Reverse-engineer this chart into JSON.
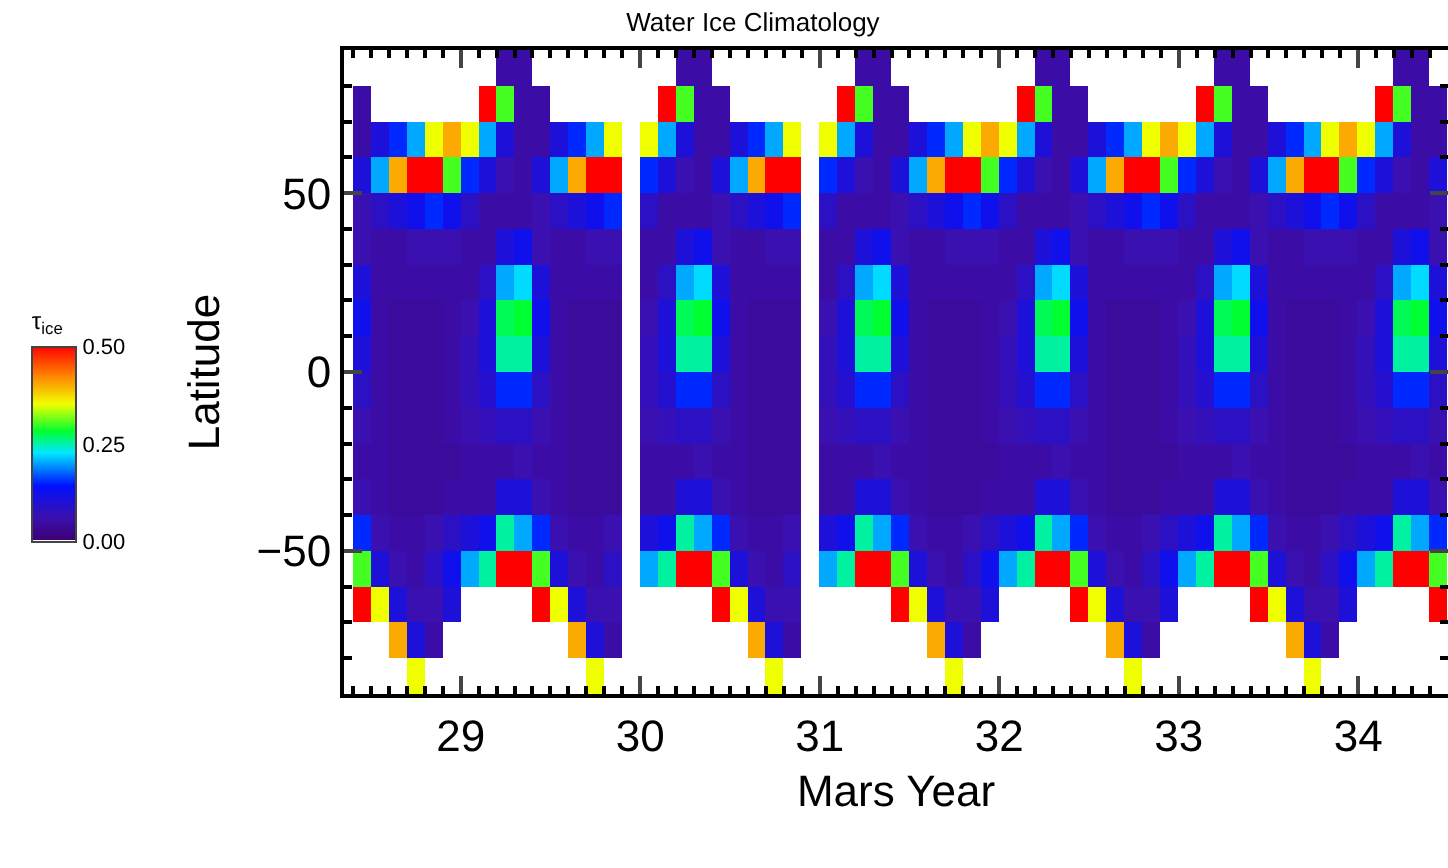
{
  "chart_data": {
    "type": "heatmap",
    "title": "Water Ice Climatology",
    "xlabel": "Mars Year",
    "ylabel": "Latitude",
    "clabel": "τ$_{ice}$",
    "x": [
      28.35,
      28.45,
      28.55,
      28.65,
      28.75,
      28.85,
      28.95,
      29.05,
      29.15,
      29.25,
      29.35,
      29.45,
      29.55,
      29.65,
      29.75,
      29.85,
      29.95,
      30.05,
      30.15,
      30.25,
      30.35,
      30.45,
      30.55,
      30.65,
      30.75,
      30.85,
      30.95,
      31.05,
      31.15,
      31.25,
      31.35,
      31.45,
      31.55,
      31.65,
      31.75,
      31.85,
      31.95,
      32.05,
      32.15,
      32.25,
      32.35,
      32.45,
      32.55,
      32.65,
      32.75,
      32.85,
      32.95,
      33.05,
      33.15,
      33.25,
      33.35,
      33.45,
      33.55,
      33.65,
      33.75,
      33.85,
      33.95,
      34.05,
      34.15,
      34.25,
      34.35,
      34.45
    ],
    "y": [
      85,
      75,
      65,
      55,
      45,
      35,
      25,
      15,
      5,
      -5,
      -15,
      -25,
      -35,
      -45,
      -55,
      -65,
      -75,
      -85
    ],
    "cells": [
      [
        null,
        null,
        null,
        null,
        null,
        null,
        null,
        null,
        null,
        0.05,
        0.05,
        null,
        null,
        null,
        null,
        null,
        null,
        null,
        null,
        0.05,
        0.05,
        null,
        null,
        null,
        null,
        null,
        null,
        null,
        null,
        0.05,
        0.05,
        null,
        null,
        null,
        null,
        null,
        null,
        null,
        null,
        0.05,
        0.05,
        null,
        null,
        null,
        null,
        null,
        null,
        null,
        null,
        0.05,
        0.05,
        null,
        null,
        null,
        null,
        null,
        null,
        null,
        null,
        0.05,
        0.05,
        null
      ],
      [
        null,
        0.05,
        null,
        null,
        null,
        null,
        null,
        null,
        0.5,
        0.3,
        0.05,
        0.05,
        null,
        null,
        null,
        null,
        null,
        null,
        0.5,
        0.3,
        0.05,
        0.05,
        null,
        null,
        null,
        null,
        null,
        null,
        0.5,
        0.3,
        0.05,
        0.05,
        null,
        null,
        null,
        null,
        null,
        null,
        0.5,
        0.3,
        0.05,
        0.05,
        null,
        null,
        null,
        null,
        null,
        null,
        0.5,
        0.3,
        0.05,
        0.05,
        null,
        null,
        null,
        null,
        null,
        null,
        0.5,
        0.3,
        0.05,
        0.05
      ],
      [
        null,
        0.05,
        0.1,
        0.15,
        0.2,
        0.35,
        0.4,
        0.35,
        0.2,
        0.1,
        0.05,
        0.05,
        0.1,
        0.15,
        0.2,
        0.35,
        null,
        0.35,
        0.2,
        0.1,
        0.05,
        0.05,
        0.1,
        0.15,
        0.2,
        0.35,
        null,
        0.35,
        0.2,
        0.1,
        0.05,
        0.05,
        0.1,
        0.15,
        0.2,
        0.35,
        0.4,
        0.35,
        0.2,
        0.1,
        0.05,
        0.05,
        0.1,
        0.15,
        0.2,
        0.35,
        0.4,
        0.35,
        0.2,
        0.1,
        0.05,
        0.05,
        0.1,
        0.15,
        0.2,
        0.35,
        0.4,
        0.35,
        0.2,
        0.1,
        0.05,
        0.05
      ],
      [
        null,
        0.1,
        0.2,
        0.4,
        0.5,
        0.5,
        0.3,
        0.15,
        0.1,
        0.06,
        0.05,
        0.1,
        0.2,
        0.4,
        0.5,
        0.5,
        null,
        0.15,
        0.1,
        0.06,
        0.05,
        0.1,
        0.2,
        0.4,
        0.5,
        0.5,
        null,
        0.15,
        0.1,
        0.06,
        0.05,
        0.1,
        0.2,
        0.4,
        0.5,
        0.5,
        0.3,
        0.15,
        0.1,
        0.06,
        0.05,
        0.1,
        0.2,
        0.4,
        0.5,
        0.5,
        0.3,
        0.15,
        0.1,
        0.06,
        0.05,
        0.1,
        0.2,
        0.4,
        0.5,
        0.5,
        0.3,
        0.15,
        0.1,
        0.06,
        0.05,
        0.1
      ],
      [
        null,
        0.06,
        0.08,
        0.1,
        0.12,
        0.15,
        0.12,
        0.08,
        0.05,
        0.05,
        0.05,
        0.06,
        0.08,
        0.1,
        0.12,
        0.15,
        null,
        0.08,
        0.05,
        0.05,
        0.05,
        0.06,
        0.08,
        0.1,
        0.12,
        0.15,
        null,
        0.08,
        0.05,
        0.05,
        0.05,
        0.06,
        0.08,
        0.1,
        0.12,
        0.15,
        0.12,
        0.08,
        0.05,
        0.05,
        0.05,
        0.06,
        0.08,
        0.1,
        0.12,
        0.15,
        0.12,
        0.08,
        0.05,
        0.05,
        0.05,
        0.06,
        0.08,
        0.1,
        0.12,
        0.15,
        0.12,
        0.08,
        0.05,
        0.05,
        0.05,
        0.06
      ],
      [
        null,
        0.06,
        0.05,
        0.05,
        0.06,
        0.06,
        0.06,
        0.05,
        0.05,
        0.1,
        0.12,
        0.06,
        0.05,
        0.05,
        0.06,
        0.06,
        null,
        0.05,
        0.05,
        0.1,
        0.12,
        0.06,
        0.05,
        0.05,
        0.06,
        0.06,
        null,
        0.05,
        0.05,
        0.1,
        0.12,
        0.06,
        0.05,
        0.05,
        0.06,
        0.06,
        0.06,
        0.05,
        0.05,
        0.1,
        0.12,
        0.06,
        0.05,
        0.05,
        0.06,
        0.06,
        0.06,
        0.05,
        0.05,
        0.1,
        0.12,
        0.06,
        0.05,
        0.05,
        0.06,
        0.06,
        0.06,
        0.05,
        0.05,
        0.1,
        0.12,
        0.06
      ],
      [
        null,
        0.1,
        0.05,
        0.05,
        0.05,
        0.05,
        0.05,
        0.05,
        0.08,
        0.2,
        0.22,
        0.1,
        0.05,
        0.05,
        0.05,
        0.05,
        null,
        0.05,
        0.08,
        0.2,
        0.22,
        0.1,
        0.05,
        0.05,
        0.05,
        0.05,
        null,
        0.05,
        0.08,
        0.2,
        0.22,
        0.1,
        0.05,
        0.05,
        0.05,
        0.05,
        0.05,
        0.05,
        0.08,
        0.2,
        0.22,
        0.1,
        0.05,
        0.05,
        0.05,
        0.05,
        0.05,
        0.05,
        0.08,
        0.2,
        0.22,
        0.1,
        0.05,
        0.05,
        0.05,
        0.05,
        0.05,
        0.05,
        0.08,
        0.2,
        0.22,
        0.1
      ],
      [
        null,
        0.12,
        0.05,
        0.04,
        0.04,
        0.04,
        0.05,
        0.06,
        0.1,
        0.27,
        0.28,
        0.12,
        0.05,
        0.04,
        0.04,
        0.04,
        null,
        0.06,
        0.1,
        0.27,
        0.28,
        0.12,
        0.05,
        0.04,
        0.04,
        0.04,
        null,
        0.06,
        0.1,
        0.27,
        0.28,
        0.12,
        0.05,
        0.04,
        0.04,
        0.04,
        0.05,
        0.06,
        0.1,
        0.27,
        0.28,
        0.12,
        0.05,
        0.04,
        0.04,
        0.04,
        0.05,
        0.06,
        0.1,
        0.27,
        0.28,
        0.12,
        0.05,
        0.04,
        0.04,
        0.04,
        0.05,
        0.06,
        0.1,
        0.27,
        0.28,
        0.12
      ],
      [
        null,
        0.1,
        0.05,
        0.04,
        0.04,
        0.04,
        0.05,
        0.07,
        0.1,
        0.25,
        0.25,
        0.1,
        0.05,
        0.04,
        0.04,
        0.04,
        null,
        0.07,
        0.1,
        0.25,
        0.25,
        0.1,
        0.05,
        0.04,
        0.04,
        0.04,
        null,
        0.07,
        0.1,
        0.25,
        0.25,
        0.1,
        0.05,
        0.04,
        0.04,
        0.04,
        0.05,
        0.07,
        0.1,
        0.25,
        0.25,
        0.1,
        0.05,
        0.04,
        0.04,
        0.04,
        0.05,
        0.07,
        0.1,
        0.25,
        0.25,
        0.1,
        0.05,
        0.04,
        0.04,
        0.04,
        0.05,
        0.07,
        0.1,
        0.25,
        0.25,
        0.1
      ],
      [
        null,
        0.08,
        0.05,
        0.04,
        0.04,
        0.04,
        0.05,
        0.07,
        0.09,
        0.15,
        0.15,
        0.08,
        0.05,
        0.04,
        0.04,
        0.04,
        null,
        0.07,
        0.09,
        0.15,
        0.15,
        0.08,
        0.05,
        0.04,
        0.04,
        0.04,
        null,
        0.07,
        0.09,
        0.15,
        0.15,
        0.08,
        0.05,
        0.04,
        0.04,
        0.04,
        0.05,
        0.07,
        0.09,
        0.15,
        0.15,
        0.08,
        0.05,
        0.04,
        0.04,
        0.04,
        0.05,
        0.07,
        0.09,
        0.15,
        0.15,
        0.08,
        0.05,
        0.04,
        0.04,
        0.04,
        0.05,
        0.07,
        0.09,
        0.15,
        0.15,
        0.08
      ],
      [
        null,
        0.06,
        0.05,
        0.04,
        0.04,
        0.04,
        0.05,
        0.06,
        0.07,
        0.08,
        0.08,
        0.06,
        0.05,
        0.04,
        0.04,
        0.04,
        null,
        0.06,
        0.07,
        0.08,
        0.08,
        0.06,
        0.05,
        0.04,
        0.04,
        0.04,
        null,
        0.06,
        0.07,
        0.08,
        0.08,
        0.06,
        0.05,
        0.04,
        0.04,
        0.04,
        0.05,
        0.06,
        0.07,
        0.08,
        0.08,
        0.06,
        0.05,
        0.04,
        0.04,
        0.04,
        0.05,
        0.06,
        0.07,
        0.08,
        0.08,
        0.06,
        0.05,
        0.04,
        0.04,
        0.04,
        0.05,
        0.06,
        0.07,
        0.08,
        0.08,
        0.06
      ],
      [
        null,
        0.05,
        0.05,
        0.04,
        0.04,
        0.04,
        0.04,
        0.05,
        0.05,
        0.05,
        0.06,
        0.05,
        0.05,
        0.04,
        0.04,
        0.04,
        null,
        0.05,
        0.05,
        0.05,
        0.06,
        0.05,
        0.05,
        0.04,
        0.04,
        0.04,
        null,
        0.05,
        0.05,
        0.05,
        0.06,
        0.05,
        0.05,
        0.04,
        0.04,
        0.04,
        0.04,
        0.05,
        0.05,
        0.05,
        0.06,
        0.05,
        0.05,
        0.04,
        0.04,
        0.04,
        0.04,
        0.05,
        0.05,
        0.05,
        0.06,
        0.05,
        0.05,
        0.04,
        0.04,
        0.04,
        0.04,
        0.05,
        0.05,
        0.05,
        0.06,
        0.05
      ],
      [
        null,
        0.06,
        0.05,
        0.04,
        0.04,
        0.04,
        0.05,
        0.05,
        0.05,
        0.1,
        0.1,
        0.06,
        0.05,
        0.04,
        0.04,
        0.04,
        null,
        0.05,
        0.05,
        0.1,
        0.1,
        0.06,
        0.05,
        0.04,
        0.04,
        0.04,
        null,
        0.05,
        0.05,
        0.1,
        0.1,
        0.06,
        0.05,
        0.04,
        0.04,
        0.04,
        0.05,
        0.05,
        0.05,
        0.1,
        0.1,
        0.06,
        0.05,
        0.04,
        0.04,
        0.04,
        0.05,
        0.05,
        0.05,
        0.1,
        0.1,
        0.06,
        0.05,
        0.04,
        0.04,
        0.04,
        0.05,
        0.05,
        0.05,
        0.1,
        0.1,
        0.06
      ],
      [
        null,
        0.15,
        0.06,
        0.05,
        0.05,
        0.06,
        0.08,
        0.1,
        0.12,
        0.25,
        0.2,
        0.15,
        0.06,
        0.05,
        0.05,
        0.06,
        null,
        0.1,
        0.12,
        0.25,
        0.2,
        0.15,
        0.06,
        0.05,
        0.05,
        0.06,
        null,
        0.1,
        0.12,
        0.25,
        0.2,
        0.15,
        0.06,
        0.05,
        0.05,
        0.06,
        0.08,
        0.1,
        0.12,
        0.25,
        0.2,
        0.15,
        0.06,
        0.05,
        0.05,
        0.06,
        0.08,
        0.1,
        0.12,
        0.25,
        0.2,
        0.15,
        0.06,
        0.05,
        0.05,
        0.06,
        0.08,
        0.1,
        0.12,
        0.25,
        0.2,
        0.15
      ],
      [
        null,
        0.3,
        0.1,
        0.06,
        0.05,
        0.08,
        0.12,
        0.2,
        0.25,
        0.5,
        0.5,
        0.3,
        0.1,
        0.06,
        0.05,
        0.08,
        null,
        0.2,
        0.25,
        0.5,
        0.5,
        0.3,
        0.1,
        0.06,
        0.05,
        0.08,
        null,
        0.2,
        0.25,
        0.5,
        0.5,
        0.3,
        0.1,
        0.06,
        0.05,
        0.08,
        0.12,
        0.2,
        0.25,
        0.5,
        0.5,
        0.3,
        0.1,
        0.06,
        0.05,
        0.08,
        0.12,
        0.2,
        0.25,
        0.5,
        0.5,
        0.3,
        0.1,
        0.06,
        0.05,
        0.08,
        0.12,
        0.2,
        0.25,
        0.5,
        0.5,
        0.3
      ],
      [
        null,
        0.5,
        0.35,
        0.1,
        0.06,
        0.06,
        0.1,
        null,
        null,
        null,
        null,
        0.5,
        0.35,
        0.1,
        0.06,
        0.06,
        null,
        null,
        null,
        null,
        null,
        0.5,
        0.35,
        0.1,
        0.06,
        0.06,
        null,
        null,
        null,
        null,
        null,
        0.5,
        0.35,
        0.1,
        0.06,
        0.06,
        0.1,
        null,
        null,
        null,
        null,
        0.5,
        0.35,
        0.1,
        0.06,
        0.06,
        0.1,
        null,
        null,
        null,
        null,
        0.5,
        0.35,
        0.1,
        0.06,
        0.06,
        0.1,
        null,
        null,
        null,
        null,
        0.5
      ],
      [
        null,
        null,
        null,
        0.4,
        0.1,
        0.05,
        null,
        null,
        null,
        null,
        null,
        null,
        null,
        0.4,
        0.1,
        0.05,
        null,
        null,
        null,
        null,
        null,
        null,
        null,
        0.4,
        0.1,
        0.05,
        null,
        null,
        null,
        null,
        null,
        null,
        null,
        0.4,
        0.1,
        0.05,
        null,
        null,
        null,
        null,
        null,
        null,
        null,
        0.4,
        0.1,
        0.05,
        null,
        null,
        null,
        null,
        null,
        null,
        null,
        0.4,
        0.1,
        0.05,
        null,
        null,
        null,
        null,
        null,
        null
      ],
      [
        null,
        null,
        null,
        null,
        0.35,
        null,
        null,
        null,
        null,
        null,
        null,
        null,
        null,
        null,
        0.35,
        null,
        null,
        null,
        null,
        null,
        null,
        null,
        null,
        null,
        0.35,
        null,
        null,
        null,
        null,
        null,
        null,
        null,
        null,
        null,
        0.35,
        null,
        null,
        null,
        null,
        null,
        null,
        null,
        null,
        null,
        0.35,
        null,
        null,
        null,
        null,
        null,
        null,
        null,
        null,
        null,
        0.35,
        null,
        null,
        null,
        null,
        null,
        null,
        null
      ]
    ],
    "xlim": [
      28.35,
      34.5
    ],
    "xticks": [
      29,
      30,
      31,
      32,
      33,
      34
    ],
    "ylim": [
      -90,
      90
    ],
    "yticks": [
      {
        "value": -50,
        "label": "−50"
      },
      0,
      50
    ],
    "clim": [
      0,
      0.5
    ],
    "cticks": [
      {
        "value": 0,
        "label": "0.00"
      },
      {
        "value": 0.25,
        "label": "0.25"
      },
      {
        "value": 0.5,
        "label": "0.50"
      }
    ]
  }
}
